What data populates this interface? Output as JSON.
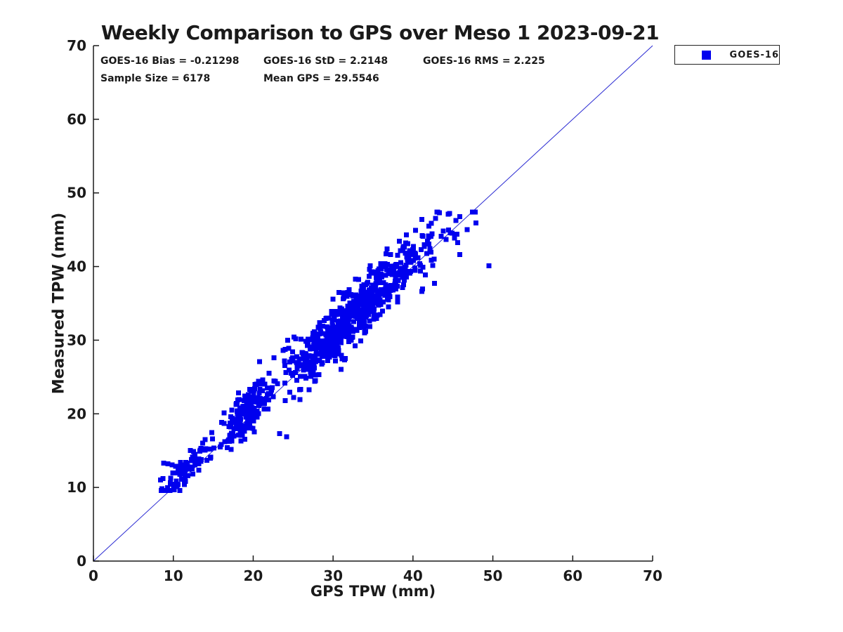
{
  "chart_data": {
    "type": "scatter",
    "title": "Weekly Comparison to GPS over Meso 1 2023-09-21",
    "xlabel": "GPS TPW (mm)",
    "ylabel": "Measured TPW (mm)",
    "xlim": [
      0,
      70
    ],
    "ylim": [
      0,
      70
    ],
    "xticks": [
      0,
      10,
      20,
      30,
      40,
      50,
      60,
      70
    ],
    "yticks": [
      0,
      10,
      20,
      30,
      40,
      50,
      60,
      70
    ],
    "grid": false,
    "axis_color": "#1a1a1a",
    "annotations": [
      {
        "text": "GOES-16 Bias = -0.21298"
      },
      {
        "text": "GOES-16 StD = 2.2148"
      },
      {
        "text": "GOES-16 RMS = 2.225"
      },
      {
        "text": "Sample Size = 6178"
      },
      {
        "text": "Mean GPS = 29.5546"
      }
    ],
    "stats": {
      "bias": -0.21298,
      "std": 2.2148,
      "rms": 2.225,
      "sample_size": 6178,
      "mean_gps": 29.5546
    },
    "identity_line": {
      "x": [
        0,
        70
      ],
      "y": [
        0,
        70
      ],
      "color": "#2a2ad2"
    },
    "legend": {
      "position": "top-right-outside",
      "entries": [
        {
          "label": "GOES-16",
          "marker": "square",
          "color": "#0000ee"
        }
      ]
    },
    "series": [
      {
        "name": "GOES-16",
        "marker": {
          "shape": "square",
          "size": 7,
          "color": "#0000ee"
        },
        "x_range": [
          8.1,
          49.7
        ],
        "y_range": [
          9.6,
          47.4
        ],
        "point_model": {
          "seed": 42,
          "clusters": [
            {
              "n": 95,
              "cx": 11.8,
              "sx": 1.5,
              "xmin": 8.2,
              "xmax": 15.2,
              "dy": 0.8,
              "sy": 1.0
            },
            {
              "n": 170,
              "cx": 19.3,
              "sx": 1.9,
              "xmin": 15.2,
              "xmax": 23.2,
              "dy": 1.0,
              "sy": 1.4
            },
            {
              "n": 545,
              "cx": 31.2,
              "sx": 4.0,
              "xmin": 23.2,
              "xmax": 40.5,
              "dy": 0.6,
              "sy": 1.9
            },
            {
              "n": 115,
              "cx": 37.3,
              "sx": 2.6,
              "xmin": 32.0,
              "xmax": 43.5,
              "dy": 1.5,
              "sy": 2.0
            },
            {
              "n": 32,
              "cx": 43.2,
              "sx": 2.0,
              "xmin": 40.0,
              "xmax": 48.3,
              "dy": 0.6,
              "sy": 2.4
            }
          ],
          "extra_points": [
            [
              49.5,
              40.1
            ],
            [
              47.9,
              45.9
            ],
            [
              46.8,
              45.0
            ],
            [
              45.5,
              44.4
            ],
            [
              44.6,
              47.2
            ],
            [
              43.3,
              47.3
            ],
            [
              42.0,
              45.5
            ],
            [
              41.1,
              46.4
            ],
            [
              40.3,
              44.9
            ],
            [
              23.3,
              17.3
            ],
            [
              24.2,
              16.9
            ],
            [
              20.8,
              27.1
            ],
            [
              22.6,
              27.6
            ],
            [
              8.4,
              11.0
            ],
            [
              8.8,
              13.3
            ],
            [
              8.7,
              11.2
            ],
            [
              9.3,
              13.2
            ],
            [
              25.1,
              30.4
            ],
            [
              24.3,
              30.0
            ]
          ]
        }
      }
    ]
  }
}
